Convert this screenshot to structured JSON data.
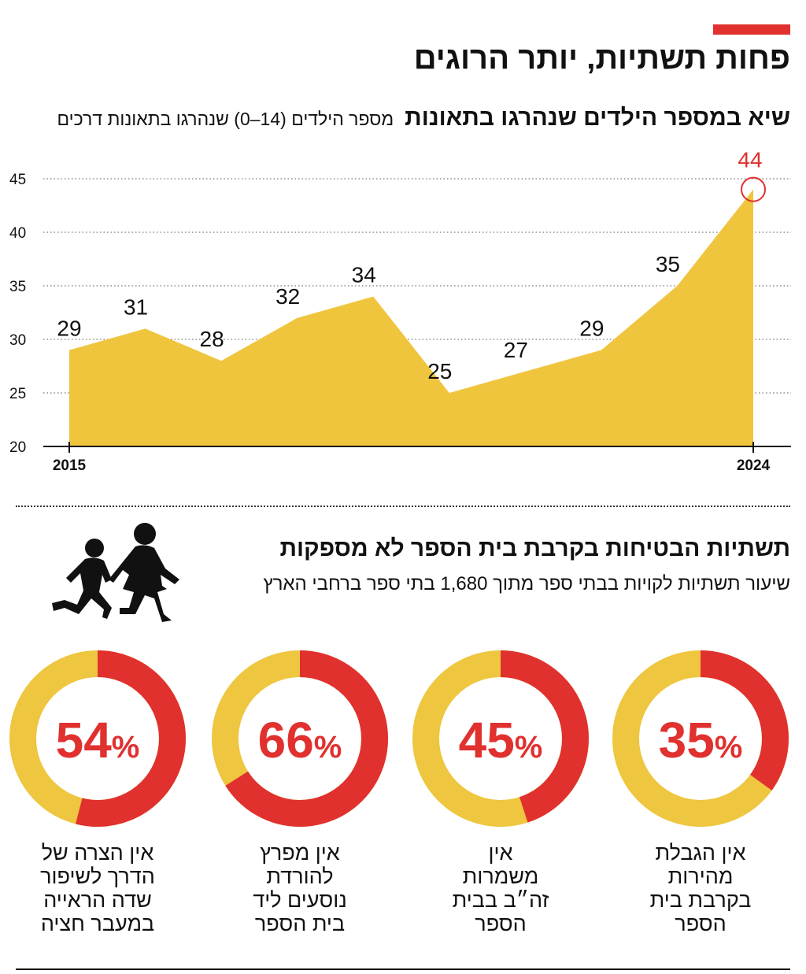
{
  "title": "פחות תשתיות, יותר הרוגים",
  "colors": {
    "accent_red": "#e0312f",
    "fill_yellow": "#f0c53e",
    "track_yellow": "#eec63f"
  },
  "chart_data": {
    "type": "area",
    "title": "שיא במספר הילדים שנהרגו בתאונות",
    "subtitle": "מספר הילדים (14–0) שנהרגו בתאונות דרכים",
    "x": [
      2015,
      2016,
      2017,
      2018,
      2019,
      2020,
      2021,
      2022,
      2023,
      2024
    ],
    "x_tick_labels": [
      "2015",
      "2024"
    ],
    "values": [
      29,
      31,
      28,
      32,
      34,
      25,
      27,
      29,
      35,
      44
    ],
    "data_labels": [
      "29",
      "31",
      "28",
      "32",
      "34",
      "25",
      "27",
      "29",
      "35",
      "44"
    ],
    "ylim": [
      20,
      45
    ],
    "y_ticks": [
      20,
      25,
      30,
      35,
      40,
      45
    ],
    "y_tick_labels": [
      "20",
      "25",
      "30",
      "35",
      "40",
      "45"
    ],
    "grid": "horizontal dotted",
    "highlight": "2024"
  },
  "section2": {
    "title": "תשתיות הבטיחות בקרבת בית הספר לא מספקות",
    "subtitle": "שיעור תשתיות לקויות בבתי ספר מתוך 1,680 בתי ספר ברחבי הארץ",
    "icon": "children-running-icon",
    "donuts": [
      {
        "value": 54,
        "label": "54",
        "unit": "%",
        "caption": [
          "אין הצרה של",
          "הדרך לשיפור",
          "שדה הראייה",
          "במעבר חציה"
        ]
      },
      {
        "value": 66,
        "label": "66",
        "unit": "%",
        "caption": [
          "אין מפרץ",
          "להורדת",
          "נוסעים ליד",
          "בית הספר"
        ]
      },
      {
        "value": 45,
        "label": "45",
        "unit": "%",
        "caption": [
          "אין",
          "משמרות",
          "זה״ב בבית",
          "הספר"
        ]
      },
      {
        "value": 35,
        "label": "35",
        "unit": "%",
        "caption": [
          "אין הגבלת",
          "מהירות",
          "בקרבת בית",
          "הספר"
        ]
      }
    ]
  }
}
